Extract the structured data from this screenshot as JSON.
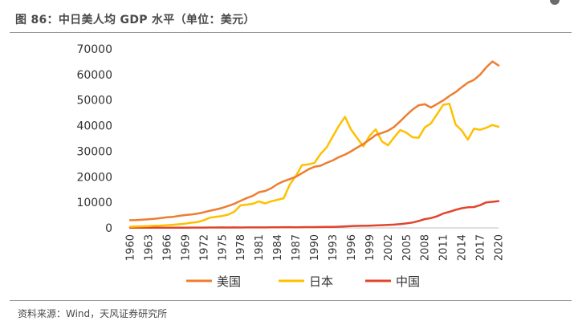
{
  "header": {
    "title": "图 86：中日美人均 GDP 水平（单位：美元）"
  },
  "footer": {
    "source": "资料来源：Wind，天风证券研究所"
  },
  "chart_data": {
    "type": "line",
    "title": "",
    "xlabel": "",
    "ylabel": "",
    "ylim": [
      0,
      70000
    ],
    "xlim": [
      1960,
      2020
    ],
    "yticks": [
      0,
      10000,
      20000,
      30000,
      40000,
      50000,
      60000,
      70000
    ],
    "xticks": [
      1960,
      1963,
      1966,
      1969,
      1972,
      1975,
      1978,
      1981,
      1984,
      1987,
      1990,
      1993,
      1996,
      1999,
      2002,
      2005,
      2008,
      2011,
      2014,
      2017,
      2020
    ],
    "grid": false,
    "legend": "bottom",
    "x": [
      1960,
      1961,
      1962,
      1963,
      1964,
      1965,
      1966,
      1967,
      1968,
      1969,
      1970,
      1971,
      1972,
      1973,
      1974,
      1975,
      1976,
      1977,
      1978,
      1979,
      1980,
      1981,
      1982,
      1983,
      1984,
      1985,
      1986,
      1987,
      1988,
      1989,
      1990,
      1991,
      1992,
      1993,
      1994,
      1995,
      1996,
      1997,
      1998,
      1999,
      2000,
      2001,
      2002,
      2003,
      2004,
      2005,
      2006,
      2007,
      2008,
      2009,
      2010,
      2011,
      2012,
      2013,
      2014,
      2015,
      2016,
      2017,
      2018,
      2019,
      2020
    ],
    "series": [
      {
        "name": "美国",
        "color": "#ED7D31",
        "values": [
          3007,
          3067,
          3244,
          3375,
          3574,
          3828,
          4146,
          4336,
          4696,
          5032,
          5234,
          5609,
          6094,
          6726,
          7226,
          7801,
          8592,
          9453,
          10565,
          11674,
          12575,
          13976,
          14434,
          15544,
          17121,
          18237,
          19071,
          20039,
          21417,
          22857,
          23889,
          24342,
          25419,
          26387,
          27695,
          28691,
          29968,
          31459,
          32854,
          34515,
          36335,
          37133,
          38023,
          39497,
          41712,
          44115,
          46299,
          47976,
          48383,
          47100,
          48467,
          49883,
          51603,
          53107,
          55033,
          56803,
          57904,
          59928,
          62805,
          65095,
          63544
        ]
      },
      {
        "name": "日本",
        "color": "#FFC000",
        "values": [
          479,
          564,
          634,
          718,
          836,
          919,
          1058,
          1228,
          1451,
          1669,
          2037,
          2272,
          2967,
          3998,
          4354,
          4659,
          5197,
          6335,
          8821,
          9105,
          9463,
          10361,
          9578,
          10425,
          10984,
          11585,
          16882,
          20355,
          24593,
          24822,
          25371,
          28925,
          31465,
          35766,
          39934,
          43440,
          38437,
          35022,
          31903,
          36027,
          38532,
          33846,
          32289,
          35387,
          38299,
          37218,
          35434,
          35275,
          39339,
          40855,
          44508,
          48168,
          48603,
          40454,
          38109,
          34524,
          38794,
          38387,
          39159,
          40247,
          39538
        ]
      },
      {
        "name": "中国",
        "color": "#E0452C",
        "values": [
          90,
          76,
          71,
          74,
          85,
          98,
          104,
          97,
          92,
          100,
          113,
          119,
          132,
          157,
          161,
          178,
          166,
          185,
          156,
          184,
          195,
          197,
          203,
          225,
          251,
          294,
          282,
          252,
          284,
          311,
          318,
          333,
          366,
          377,
          473,
          610,
          709,
          782,
          829,
          873,
          959,
          1053,
          1149,
          1289,
          1509,
          1753,
          2099,
          2694,
          3468,
          3832,
          4550,
          5618,
          6317,
          7051,
          7679,
          8067,
          8148,
          8879,
          9977,
          10217,
          10500
        ]
      }
    ]
  }
}
